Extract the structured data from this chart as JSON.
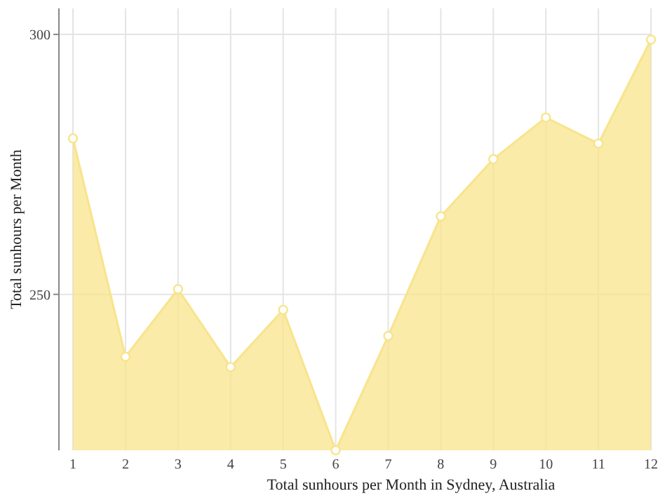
{
  "chart_data": {
    "type": "area",
    "xlabel": "Total sunhours per Month in Sydney, Australia",
    "ylabel": "Total sunhours per Month",
    "x": [
      1,
      2,
      3,
      4,
      5,
      6,
      7,
      8,
      9,
      10,
      11,
      12
    ],
    "xlim": [
      1,
      12
    ],
    "xticks": [
      1,
      2,
      3,
      4,
      5,
      6,
      7,
      8,
      9,
      10,
      11,
      12
    ],
    "series": [
      {
        "color": "#f8e48c",
        "values": [
          280,
          238,
          251,
          236,
          247,
          220,
          242,
          265,
          276,
          284,
          279,
          299
        ]
      }
    ],
    "ylim": [
      220,
      305
    ],
    "yticks": [
      250,
      300
    ],
    "grid": true,
    "marker": "circle"
  }
}
